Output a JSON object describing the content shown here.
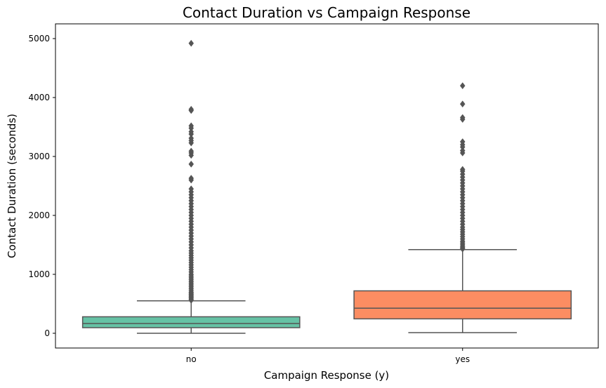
{
  "chart_data": {
    "type": "box",
    "title": "Contact Duration vs Campaign Response",
    "xlabel": "Campaign Response (y)",
    "ylabel": "Contact Duration (seconds)",
    "ylim": [
      -250,
      5250
    ],
    "yticks": [
      0,
      1000,
      2000,
      3000,
      4000,
      5000
    ],
    "grid": false,
    "series": [
      {
        "category": "no",
        "color": "#66c2a5",
        "whisker_low": 0,
        "q1": 95,
        "median": 165,
        "q3": 280,
        "whisker_high": 550,
        "outliers": [
          560,
          580,
          600,
          620,
          640,
          660,
          680,
          700,
          730,
          760,
          790,
          820,
          850,
          880,
          910,
          940,
          970,
          1000,
          1040,
          1080,
          1120,
          1160,
          1200,
          1240,
          1280,
          1320,
          1360,
          1400,
          1450,
          1500,
          1550,
          1600,
          1650,
          1700,
          1750,
          1800,
          1850,
          1900,
          1950,
          2000,
          2050,
          2100,
          2150,
          2200,
          2250,
          2300,
          2350,
          2400,
          2450,
          2600,
          2630,
          2870,
          3020,
          3060,
          3090,
          3230,
          3270,
          3310,
          3380,
          3420,
          3480,
          3520,
          3780,
          3800,
          4920
        ]
      },
      {
        "category": "yes",
        "color": "#fc8d62",
        "whisker_low": 10,
        "q1": 245,
        "median": 425,
        "q3": 720,
        "whisker_high": 1420,
        "outliers": [
          1430,
          1450,
          1470,
          1500,
          1530,
          1560,
          1600,
          1640,
          1680,
          1720,
          1760,
          1800,
          1850,
          1900,
          1950,
          2000,
          2050,
          2100,
          2150,
          2200,
          2250,
          2300,
          2350,
          2400,
          2450,
          2500,
          2550,
          2600,
          2650,
          2700,
          2750,
          2780,
          3060,
          3100,
          3160,
          3200,
          3250,
          3630,
          3660,
          3890,
          4200
        ]
      }
    ]
  }
}
